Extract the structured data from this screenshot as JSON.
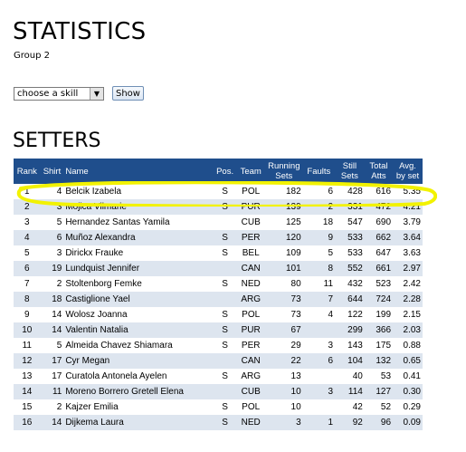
{
  "page": {
    "title": "STATISTICS",
    "group": "Group 2",
    "skill_select": "choose a skill",
    "show_button": "Show",
    "section_title": "SETTERS"
  },
  "table": {
    "headers": [
      "Rank",
      "Shirt",
      "Name",
      "Pos.",
      "Team",
      "Running Sets",
      "Faults",
      "Still Sets",
      "Total Atts",
      "Avg. by set"
    ],
    "rows": [
      {
        "rank": "1",
        "shirt": "4",
        "name": "Belcik Izabela",
        "pos": "S",
        "team": "POL",
        "running": "182",
        "faults": "6",
        "still": "428",
        "total": "616",
        "avg": "5.35"
      },
      {
        "rank": "2",
        "shirt": "3",
        "name": "Mojica Vilmarie",
        "pos": "S",
        "team": "PUR",
        "running": "139",
        "faults": "2",
        "still": "331",
        "total": "472",
        "avg": "4.21"
      },
      {
        "rank": "3",
        "shirt": "5",
        "name": "Hernandez Santas Yamila",
        "pos": "",
        "team": "CUB",
        "running": "125",
        "faults": "18",
        "still": "547",
        "total": "690",
        "avg": "3.79"
      },
      {
        "rank": "4",
        "shirt": "6",
        "name": "Muñoz Alexandra",
        "pos": "S",
        "team": "PER",
        "running": "120",
        "faults": "9",
        "still": "533",
        "total": "662",
        "avg": "3.64"
      },
      {
        "rank": "5",
        "shirt": "3",
        "name": "Dirickx Frauke",
        "pos": "S",
        "team": "BEL",
        "running": "109",
        "faults": "5",
        "still": "533",
        "total": "647",
        "avg": "3.63"
      },
      {
        "rank": "6",
        "shirt": "19",
        "name": "Lundquist Jennifer",
        "pos": "",
        "team": "CAN",
        "running": "101",
        "faults": "8",
        "still": "552",
        "total": "661",
        "avg": "2.97"
      },
      {
        "rank": "7",
        "shirt": "2",
        "name": "Stoltenborg Femke",
        "pos": "S",
        "team": "NED",
        "running": "80",
        "faults": "11",
        "still": "432",
        "total": "523",
        "avg": "2.42"
      },
      {
        "rank": "8",
        "shirt": "18",
        "name": "Castiglione Yael",
        "pos": "",
        "team": "ARG",
        "running": "73",
        "faults": "7",
        "still": "644",
        "total": "724",
        "avg": "2.28"
      },
      {
        "rank": "9",
        "shirt": "14",
        "name": "Wolosz Joanna",
        "pos": "S",
        "team": "POL",
        "running": "73",
        "faults": "4",
        "still": "122",
        "total": "199",
        "avg": "2.15"
      },
      {
        "rank": "10",
        "shirt": "14",
        "name": "Valentin Natalia",
        "pos": "S",
        "team": "PUR",
        "running": "67",
        "faults": "",
        "still": "299",
        "total": "366",
        "avg": "2.03"
      },
      {
        "rank": "11",
        "shirt": "5",
        "name": "Almeida Chavez Shiamara",
        "pos": "S",
        "team": "PER",
        "running": "29",
        "faults": "3",
        "still": "143",
        "total": "175",
        "avg": "0.88"
      },
      {
        "rank": "12",
        "shirt": "17",
        "name": "Cyr Megan",
        "pos": "",
        "team": "CAN",
        "running": "22",
        "faults": "6",
        "still": "104",
        "total": "132",
        "avg": "0.65"
      },
      {
        "rank": "13",
        "shirt": "17",
        "name": "Curatola Antonela Ayelen",
        "pos": "S",
        "team": "ARG",
        "running": "13",
        "faults": "",
        "still": "40",
        "total": "53",
        "avg": "0.41"
      },
      {
        "rank": "14",
        "shirt": "11",
        "name": "Moreno Borrero Gretell Elena",
        "pos": "",
        "team": "CUB",
        "running": "10",
        "faults": "3",
        "still": "114",
        "total": "127",
        "avg": "0.30"
      },
      {
        "rank": "15",
        "shirt": "2",
        "name": "Kajzer Emilia",
        "pos": "S",
        "team": "POL",
        "running": "10",
        "faults": "",
        "still": "42",
        "total": "52",
        "avg": "0.29"
      },
      {
        "rank": "16",
        "shirt": "14",
        "name": "Dijkema Laura",
        "pos": "S",
        "team": "NED",
        "running": "3",
        "faults": "1",
        "still": "92",
        "total": "96",
        "avg": "0.09"
      }
    ]
  },
  "annotation": {
    "highlight_color": "#f2f200",
    "highlighted_rank": "1"
  },
  "colors": {
    "header_bg": "#1f4e8c",
    "row_alt": "#dde5ef"
  }
}
